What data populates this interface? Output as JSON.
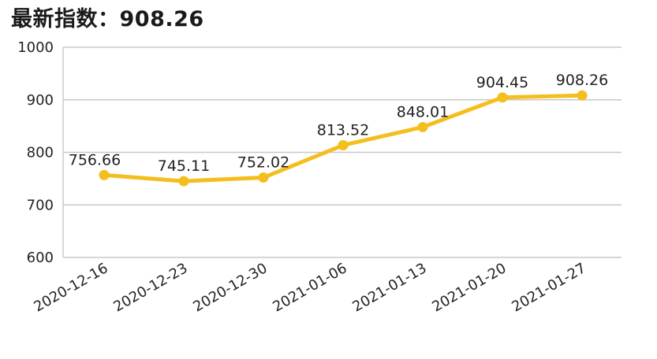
{
  "header": {
    "title": "最新指数：908.26"
  },
  "colors": {
    "series": "#F5BE1F",
    "grid": "#c8c8c8",
    "text": "#222222"
  },
  "chart_data": {
    "type": "line",
    "title": "最新指数：908.26",
    "x": [
      "2020-12-16",
      "2020-12-23",
      "2020-12-30",
      "2021-01-06",
      "2021-01-13",
      "2021-01-20",
      "2021-01-27"
    ],
    "series": [
      {
        "values": [
          756.66,
          745.11,
          752.02,
          813.52,
          848.01,
          904.45,
          908.26
        ],
        "labels": [
          "756.66",
          "745.11",
          "752.02",
          "813.52",
          "848.01",
          "904.45",
          "908.26"
        ]
      }
    ],
    "yticks": [
      "600",
      "700",
      "800",
      "900",
      "1000"
    ],
    "ylim": [
      600,
      1000
    ],
    "grid": true,
    "legend": "none"
  }
}
